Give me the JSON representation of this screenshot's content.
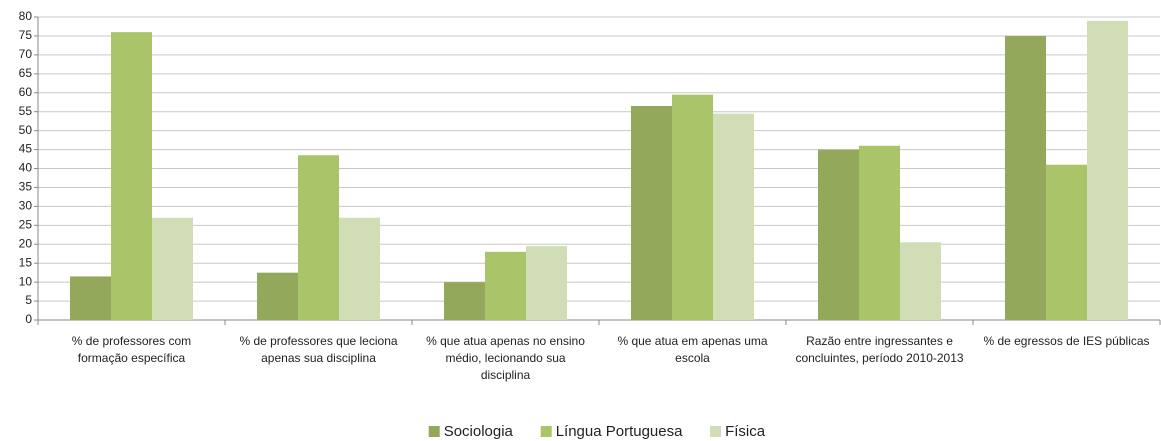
{
  "chart_data": {
    "type": "bar",
    "categories": [
      "% de professores com formação específica",
      "% de professores que leciona apenas sua disciplina",
      "% que atua apenas no ensino médio, lecionando sua disciplina",
      "% que atua em apenas uma escola",
      "Razão entre ingressantes e concluintes, período 2010-2013",
      "% de egressos de IES públicas"
    ],
    "series": [
      {
        "name": "Sociologia",
        "color": "#93a85b",
        "values": [
          11.5,
          12.5,
          10,
          56.5,
          45,
          75
        ]
      },
      {
        "name": "Língua Portuguesa",
        "color": "#aac46a",
        "values": [
          76,
          43.5,
          18,
          59.5,
          46,
          41
        ]
      },
      {
        "name": "Física",
        "color": "#d0ddb5",
        "values": [
          27,
          27,
          19.5,
          54.5,
          20.5,
          79
        ]
      }
    ],
    "ylim": [
      0,
      80
    ],
    "yticks": [
      0,
      5,
      10,
      15,
      20,
      25,
      30,
      35,
      40,
      45,
      50,
      55,
      60,
      65,
      70,
      75,
      80
    ],
    "grid": true,
    "legend": "bottom"
  }
}
